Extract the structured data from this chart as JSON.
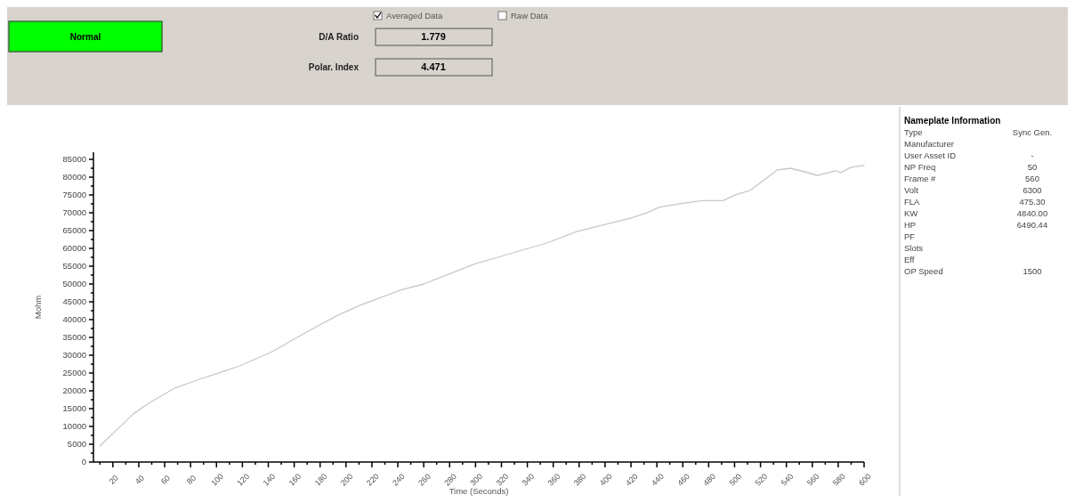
{
  "chart_data": [
    {
      "type": "line",
      "xlabel": "Time (Seconds)",
      "ylabel": "Mohm",
      "color": "#c8c8c8",
      "marker": "none",
      "line_style": "solid",
      "grid": false,
      "x": [
        10,
        36,
        49,
        68,
        85,
        118,
        143,
        168,
        193,
        210,
        242,
        260,
        300,
        322,
        331,
        355,
        378,
        400,
        419,
        433,
        442,
        459,
        475,
        491,
        501,
        512,
        522,
        533,
        543,
        554,
        564,
        578,
        582,
        590,
        600
      ],
      "values": [
        4500,
        13600,
        16800,
        20800,
        23000,
        27000,
        31000,
        36200,
        41100,
        43900,
        48300,
        50000,
        55700,
        58000,
        59000,
        61500,
        64700,
        66700,
        68400,
        70100,
        71600,
        72600,
        73400,
        73400,
        75100,
        76300,
        79000,
        82000,
        82500,
        81500,
        80500,
        81800,
        81300,
        82800,
        83300
      ],
      "xlim": [
        5,
        600
      ],
      "ylim": [
        0,
        87000
      ],
      "xticks": [
        {
          "value": 10,
          "label": null
        },
        20,
        {
          "value": 30,
          "label": null
        },
        40,
        {
          "value": 50,
          "label": null
        },
        60,
        {
          "value": 70,
          "label": null
        },
        80,
        {
          "value": 90,
          "label": null
        },
        100,
        {
          "value": 110,
          "label": null
        },
        120,
        {
          "value": 130,
          "label": null
        },
        140,
        {
          "value": 150,
          "label": null
        },
        160,
        {
          "value": 170,
          "label": null
        },
        180,
        {
          "value": 190,
          "label": null
        },
        200,
        {
          "value": 210,
          "label": null
        },
        220,
        {
          "value": 230,
          "label": null
        },
        240,
        {
          "value": 250,
          "label": null
        },
        260,
        {
          "value": 270,
          "label": null
        },
        280,
        {
          "value": 290,
          "label": null
        },
        300,
        {
          "value": 310,
          "label": null
        },
        320,
        {
          "value": 330,
          "label": null
        },
        340,
        {
          "value": 350,
          "label": null
        },
        360,
        {
          "value": 370,
          "label": null
        },
        380,
        {
          "value": 390,
          "label": null
        },
        400,
        {
          "value": 410,
          "label": null
        },
        420,
        {
          "value": 430,
          "label": null
        },
        440,
        {
          "value": 450,
          "label": null
        },
        460,
        {
          "value": 470,
          "label": null
        },
        480,
        {
          "value": 490,
          "label": null
        },
        500,
        {
          "value": 510,
          "label": null
        },
        520,
        {
          "value": 530,
          "label": null
        },
        540,
        {
          "value": 550,
          "label": null
        },
        560,
        {
          "value": 570,
          "label": null
        },
        580,
        {
          "value": 590,
          "label": null
        },
        600
      ],
      "yticks": [
        0,
        {
          "value": 2500,
          "label": null
        },
        5000,
        {
          "value": 7500,
          "label": null
        },
        10000,
        {
          "value": 12500,
          "label": null
        },
        15000,
        {
          "value": 17500,
          "label": null
        },
        20000,
        {
          "value": 22500,
          "label": null
        },
        25000,
        {
          "value": 27500,
          "label": null
        },
        30000,
        {
          "value": 32500,
          "label": null
        },
        35000,
        {
          "value": 37500,
          "label": null
        },
        40000,
        {
          "value": 42500,
          "label": null
        },
        45000,
        {
          "value": 47500,
          "label": null
        },
        50000,
        {
          "value": 52500,
          "label": null
        },
        55000,
        {
          "value": 57500,
          "label": null
        },
        60000,
        {
          "value": 62500,
          "label": null
        },
        65000,
        {
          "value": 67500,
          "label": null
        },
        70000,
        {
          "value": 72500,
          "label": null
        },
        75000,
        {
          "value": 77500,
          "label": null
        },
        80000,
        {
          "value": 82500,
          "label": null
        },
        85000
      ]
    },
    {
      "type": "other",
      "title": "Nameplate Information",
      "categories": [
        "Type",
        "Manufacturer",
        "User Asset ID",
        "NP Freq",
        "Frame #",
        "Volt",
        "FLA",
        "KW",
        "HP",
        "PF",
        "Slots",
        "Eff",
        "OP Speed"
      ],
      "value_labels": [
        "Sync Gen.",
        null,
        "-",
        "50",
        "560",
        "6300",
        "475.30",
        "4840.00",
        "6490.44",
        null,
        null,
        null,
        "1500"
      ]
    },
    {
      "type": "other",
      "categories": [
        "D/A Ratio",
        "Polar. Index"
      ],
      "values": [
        1.779,
        4.471
      ],
      "data_labels": true,
      "annotations": [
        "Normal",
        "Averaged Data",
        "Raw Data"
      ]
    }
  ]
}
